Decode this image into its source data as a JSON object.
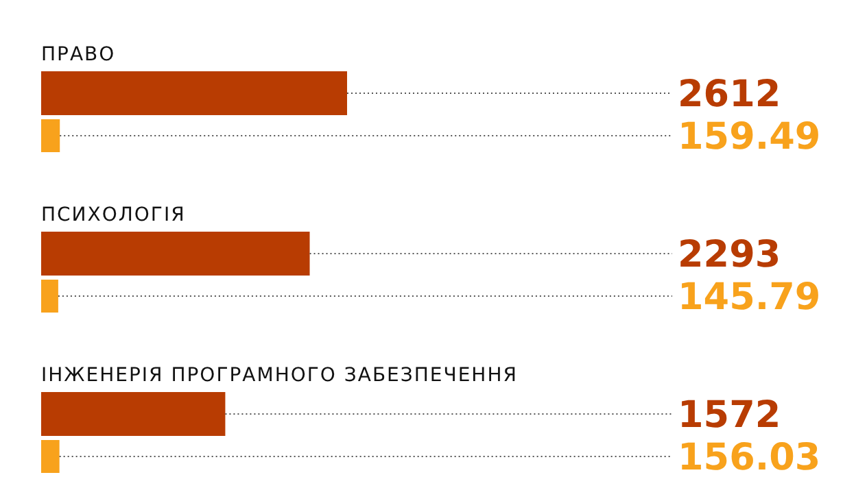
{
  "chart_data": {
    "type": "bar",
    "orientation": "horizontal",
    "categories": [
      "ПРАВО",
      "ПСИХОЛОГІЯ",
      "ІНЖЕНЕРІЯ ПРОГРАМНОГО ЗАБЕЗПЕЧЕННЯ"
    ],
    "series": [
      {
        "color": "#b83c02",
        "values": [
          2612,
          2293,
          1572
        ]
      },
      {
        "color": "#f8a21c",
        "values": [
          159.49,
          145.79,
          156.03
        ]
      }
    ],
    "data_labels": true
  }
}
